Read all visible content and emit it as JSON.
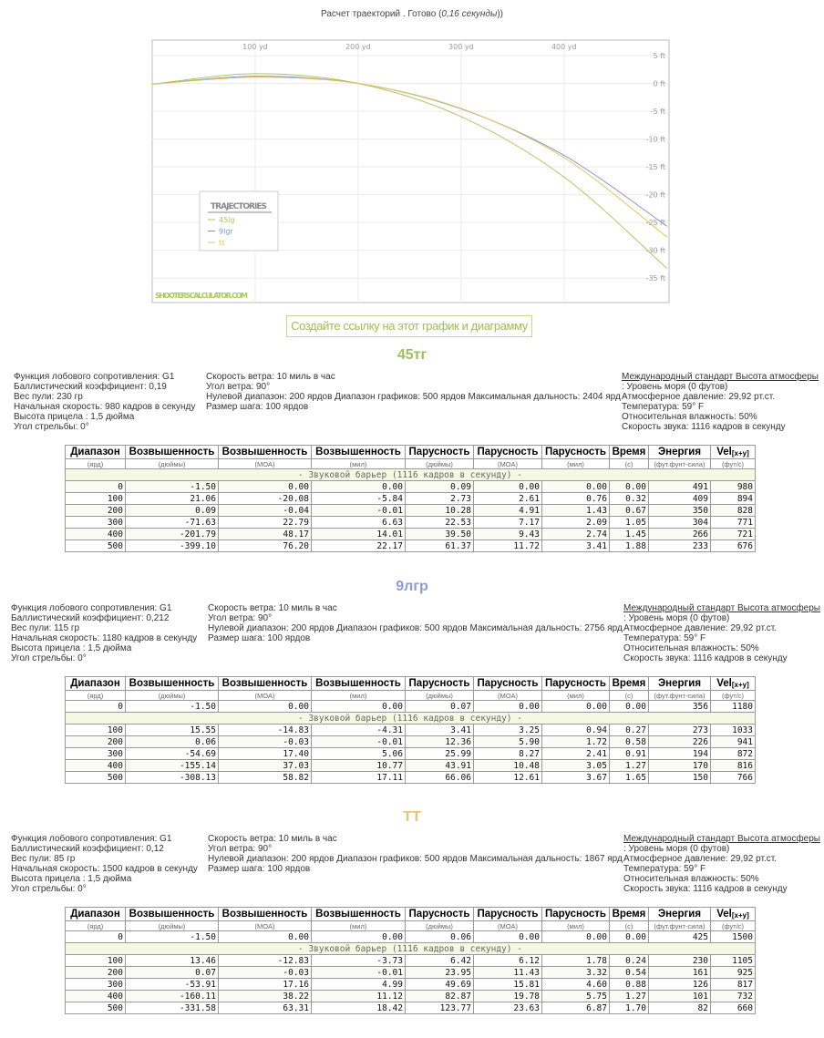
{
  "header": {
    "status": "Расчет траекторий . Готово (",
    "time": "0,16 секунды",
    "close": "))"
  },
  "chart_data": {
    "type": "line",
    "legend_title": "TRAJECTORIES",
    "watermark": "SHOOTERSCALCULATOR.COM",
    "grid": true,
    "x": [
      0,
      100,
      200,
      300,
      400,
      500
    ],
    "xlim": [
      0,
      502
    ],
    "xticks": [
      {
        "value": 100,
        "label": "100 yd"
      },
      {
        "value": 200,
        "label": "200 yd"
      },
      {
        "value": 300,
        "label": "300 yd"
      },
      {
        "value": 400,
        "label": "400 yd"
      }
    ],
    "ylim": [
      -39.4,
      7.8
    ],
    "yticks": [
      {
        "value": 5,
        "label": "5 ft"
      },
      {
        "value": 0,
        "label": "0 ft"
      },
      {
        "value": -5,
        "label": "-5 ft"
      },
      {
        "value": -10,
        "label": "-10 ft"
      },
      {
        "value": -15,
        "label": "-15 ft"
      },
      {
        "value": -20,
        "label": "-20 ft"
      },
      {
        "value": -25,
        "label": "-25 ft"
      },
      {
        "value": -30,
        "label": "-30 ft"
      },
      {
        "value": -35,
        "label": "-35 ft"
      }
    ],
    "series": [
      {
        "name": "45lg",
        "color": "#a9c95a",
        "values": [
          -0.13,
          1.76,
          0.01,
          -5.97,
          -16.82,
          -33.26
        ]
      },
      {
        "name": "9lgr",
        "color": "#8592cf",
        "values": [
          -0.13,
          1.3,
          0.01,
          -4.56,
          -12.93,
          -25.68
        ]
      },
      {
        "name": "tt",
        "color": "#e3c458",
        "values": [
          -0.13,
          1.12,
          0,
          -4.49,
          -13.34,
          -27.63
        ]
      }
    ]
  },
  "link_button": "Создайте ссылку на этот график и диаграмму",
  "sections": [
    {
      "title": "45тг",
      "color": "#9fbf5c",
      "left": [
        "Функция лобового сопротивления: G1",
        "Баллистический коэффициент: 0,19",
        "Вес пули: 230 гр",
        "Начальная скорость: 980 кадров в секунду",
        "Высота прицела : 1,5 дюйма",
        "Угол стрельбы: 0°"
      ],
      "middle": [
        "Скорость ветра: 10 миль в час",
        "Угол ветра: 90°",
        "Нулевой диапазон: 200 ярдов Диапазон графиков: 500 ярдов Максимальная дальность: 2404 ярд",
        "Размер шага: 100 ярдов"
      ],
      "atmosphere_link": "Международный стандарт Высота атмосферы",
      "right": [
        ": Уровень моря (0 футов)",
        "Атмосферное давление: 29,92 рт.ст.",
        "Температура: 59° F",
        "Относительная влажность: 50%",
        "Скорость звука: 1116 кадров в секунду"
      ],
      "table": {
        "headers": [
          "Диапазон",
          "Возвышенность",
          "Возвышенность",
          "Возвышенность",
          "Парусность",
          "Парусность",
          "Парусность",
          "Время",
          "Энергия",
          "Vel"
        ],
        "header_sub": "[x+y]",
        "units": [
          "(ярд)",
          "(дюймы)",
          "(MOA)",
          "(мил)",
          "(дюймы)",
          "(MOA)",
          "(мил)",
          "(с)",
          "(фут.фунт-сила)",
          "(фут/с)"
        ],
        "rows_before": [],
        "barrier": "- Звуковой барьер (1116 кадров в секунду) -",
        "rows_after": [
          [
            "0",
            "-1.50",
            "0.00",
            "0.00",
            "0.09",
            "0.00",
            "0.00",
            "0.00",
            "491",
            "980"
          ],
          [
            "100",
            "21.06",
            "-20.08",
            "-5.84",
            "2.73",
            "2.61",
            "0.76",
            "0.32",
            "409",
            "894"
          ],
          [
            "200",
            "0.09",
            "-0.04",
            "-0.01",
            "10.28",
            "4.91",
            "1.43",
            "0.67",
            "350",
            "828"
          ],
          [
            "300",
            "-71.63",
            "22.79",
            "6.63",
            "22.53",
            "7.17",
            "2.09",
            "1.05",
            "304",
            "771"
          ],
          [
            "400",
            "-201.79",
            "48.17",
            "14.01",
            "39.50",
            "9.43",
            "2.74",
            "1.45",
            "266",
            "721"
          ],
          [
            "500",
            "-399.10",
            "76.20",
            "22.17",
            "61.37",
            "11.72",
            "3.41",
            "1.88",
            "233",
            "676"
          ]
        ]
      }
    },
    {
      "title": "9лгр",
      "color": "#8c9dd4",
      "left": [
        "Функция лобового сопротивления: G1",
        "Баллистический коэффициент: 0,212",
        "Вес пули: 115 гр",
        "Начальная скорость: 1180 кадров в секунду",
        "Высота прицела : 1,5 дюйма",
        "Угол стрельбы: 0°"
      ],
      "middle": [
        "Скорость ветра: 10 миль в час",
        "Угол ветра: 90°",
        "Нулевой диапазон: 200 ярдов Диапазон графиков: 500 ярдов Максимальная дальность: 2756 ярд",
        "Размер шага: 100 ярдов"
      ],
      "atmosphere_link": "Международный стандарт Высота атмосферы",
      "right": [
        ": Уровень моря (0 футов)",
        "Атмосферное давление: 29,92 рт.ст.",
        "Температура: 59° F",
        "Относительная влажность: 50%",
        "Скорость звука: 1116 кадров в секунду"
      ],
      "table": {
        "headers": [
          "Диапазон",
          "Возвышенность",
          "Возвышенность",
          "Возвышенность",
          "Парусность",
          "Парусность",
          "Парусность",
          "Время",
          "Энергия",
          "Vel"
        ],
        "header_sub": "[x+y]",
        "units": [
          "(ярд)",
          "(дюймы)",
          "(MOA)",
          "(мил)",
          "(дюймы)",
          "(MOA)",
          "(мил)",
          "(с)",
          "(фут.фунт-сила)",
          "(фут/с)"
        ],
        "rows_before": [
          [
            "0",
            "-1.50",
            "0.00",
            "0.00",
            "0.07",
            "0.00",
            "0.00",
            "0.00",
            "356",
            "1180"
          ]
        ],
        "barrier": "- Звуковой барьер (1116 кадров в секунду) -",
        "rows_after": [
          [
            "100",
            "15.55",
            "-14.83",
            "-4.31",
            "3.41",
            "3.25",
            "0.94",
            "0.27",
            "273",
            "1033"
          ],
          [
            "200",
            "0.06",
            "-0.03",
            "-0.01",
            "12.36",
            "5.90",
            "1.72",
            "0.58",
            "226",
            "941"
          ],
          [
            "300",
            "-54.69",
            "17.40",
            "5.06",
            "25.99",
            "8.27",
            "2.41",
            "0.91",
            "194",
            "872"
          ],
          [
            "400",
            "-155.14",
            "37.03",
            "10.77",
            "43.91",
            "10.48",
            "3.05",
            "1.27",
            "170",
            "816"
          ],
          [
            "500",
            "-308.13",
            "58.82",
            "17.11",
            "66.06",
            "12.61",
            "3.67",
            "1.65",
            "150",
            "766"
          ]
        ]
      }
    },
    {
      "title": "ТТ",
      "color": "#e6c66c",
      "left": [
        "Функция лобового сопротивления: G1",
        "Баллистический коэффициент: 0,12",
        "Вес пули: 85 гр",
        "Начальная скорость: 1500 кадров в секунду",
        "Высота прицела : 1,5 дюйма",
        "Угол стрельбы: 0°"
      ],
      "middle": [
        "Скорость ветра: 10 миль в час",
        "Угол ветра: 90°",
        "Нулевой диапазон: 200 ярдов Диапазон графиков: 500 ярдов Максимальная дальность: 1867 ярд",
        "Размер шага: 100 ярдов"
      ],
      "atmosphere_link": "Международный стандарт Высота атмосферы",
      "right": [
        ": Уровень моря (0 футов)",
        "Атмосферное давление: 29,92 рт.ст.",
        "Температура: 59° F",
        "Относительная влажность: 50%",
        "Скорость звука: 1116 кадров в секунду"
      ],
      "table": {
        "headers": [
          "Диапазон",
          "Возвышенность",
          "Возвышенность",
          "Возвышенность",
          "Парусность",
          "Парусность",
          "Парусность",
          "Время",
          "Энергия",
          "Vel"
        ],
        "header_sub": "[x+y]",
        "units": [
          "(ярд)",
          "(дюймы)",
          "(MOA)",
          "(мил)",
          "(дюймы)",
          "(MOA)",
          "(мил)",
          "(с)",
          "(фут.фунт-сила)",
          "(фут/с)"
        ],
        "rows_before": [
          [
            "0",
            "-1.50",
            "0.00",
            "0.00",
            "0.06",
            "0.00",
            "0.00",
            "0.00",
            "425",
            "1500"
          ]
        ],
        "barrier": "- Звуковой барьер (1116 кадров в секунду) -",
        "rows_after": [
          [
            "100",
            "13.46",
            "-12.83",
            "-3.73",
            "6.42",
            "6.12",
            "1.78",
            "0.24",
            "230",
            "1105"
          ],
          [
            "200",
            "0.07",
            "-0.03",
            "-0.01",
            "23.95",
            "11.43",
            "3.32",
            "0.54",
            "161",
            "925"
          ],
          [
            "300",
            "-53.91",
            "17.16",
            "4.99",
            "49.69",
            "15.81",
            "4.60",
            "0.88",
            "126",
            "817"
          ],
          [
            "400",
            "-160.11",
            "38.22",
            "11.12",
            "82.87",
            "19.78",
            "5.75",
            "1.27",
            "101",
            "732"
          ],
          [
            "500",
            "-331.58",
            "63.31",
            "18.42",
            "123.77",
            "23.63",
            "6.87",
            "1.70",
            "82",
            "660"
          ]
        ]
      }
    }
  ]
}
